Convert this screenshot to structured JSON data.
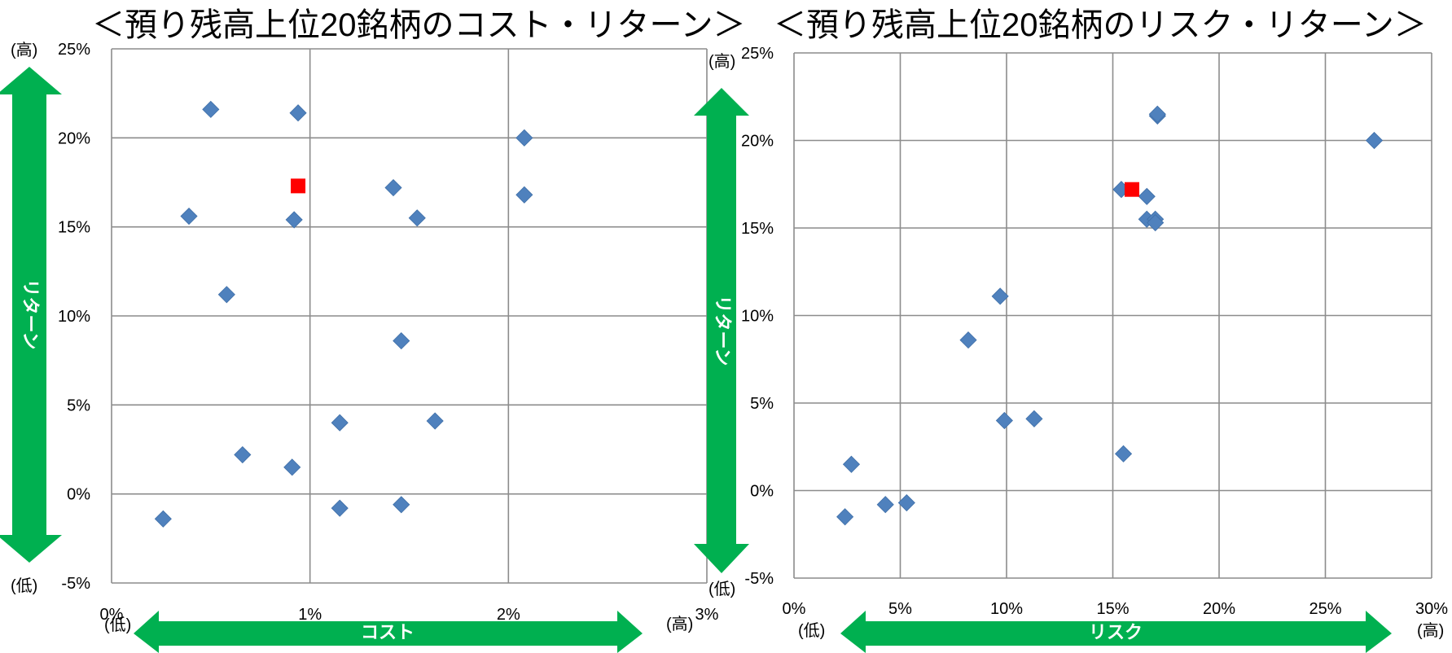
{
  "chart_data": [
    {
      "type": "scatter",
      "title": "＜預り残高上位20銘柄のコスト・リターン＞",
      "xlabel": "コスト",
      "ylabel": "リターン",
      "xlim": [
        0,
        3
      ],
      "ylim": [
        -5,
        25
      ],
      "x_ticks": [
        0,
        1,
        2,
        3
      ],
      "y_ticks": [
        -5,
        0,
        5,
        10,
        15,
        20,
        25
      ],
      "x_tick_labels": [
        "0%",
        "1%",
        "2%",
        "3%"
      ],
      "y_tick_labels": [
        "-5%",
        "0%",
        "5%",
        "10%",
        "15%",
        "20%",
        "25%"
      ],
      "high_label": "(高)",
      "low_label": "(低)",
      "grid": true,
      "series": [
        {
          "marker": "diamond",
          "color": "#4f81bd",
          "x": [
            0.5,
            0.94,
            0.39,
            0.92,
            0.58,
            1.42,
            1.54,
            2.08,
            2.08,
            1.46,
            1.15,
            1.63,
            0.66,
            0.91,
            0.26,
            1.15,
            1.46
          ],
          "y": [
            21.6,
            21.4,
            15.6,
            15.4,
            11.2,
            17.2,
            15.5,
            20.0,
            16.8,
            8.6,
            4.0,
            4.1,
            2.2,
            1.5,
            -1.4,
            -0.8,
            -0.6
          ]
        },
        {
          "marker": "square",
          "color": "#ff0000",
          "x": [
            0.94
          ],
          "y": [
            17.3
          ]
        }
      ]
    },
    {
      "type": "scatter",
      "title": "＜預り残高上位20銘柄のリスク・リターン＞",
      "xlabel": "リスク",
      "ylabel": "リターン",
      "xlim": [
        0,
        30
      ],
      "ylim": [
        -5,
        25
      ],
      "x_ticks": [
        0,
        5,
        10,
        15,
        20,
        25,
        30
      ],
      "y_ticks": [
        -5,
        0,
        5,
        10,
        15,
        20,
        25
      ],
      "x_tick_labels": [
        "0%",
        "5%",
        "10%",
        "15%",
        "20%",
        "25%",
        "30%"
      ],
      "y_tick_labels": [
        "-5%",
        "0%",
        "5%",
        "10%",
        "15%",
        "20%",
        "25%"
      ],
      "high_label": "(高)",
      "low_label": "(低)",
      "grid": true,
      "series": [
        {
          "marker": "diamond",
          "color": "#4f81bd",
          "x": [
            17.1,
            17.1,
            27.3,
            15.4,
            16.6,
            16.6,
            17.0,
            17.0,
            9.7,
            8.2,
            9.9,
            11.3,
            15.5,
            2.7,
            2.4,
            4.3,
            5.3
          ],
          "y": [
            21.4,
            21.5,
            20.0,
            17.2,
            16.8,
            15.5,
            15.5,
            15.3,
            11.1,
            8.6,
            4.0,
            4.1,
            2.1,
            1.5,
            -1.5,
            -0.8,
            -0.7
          ]
        },
        {
          "marker": "square",
          "color": "#ff0000",
          "x": [
            15.9
          ],
          "y": [
            17.2
          ]
        }
      ]
    }
  ]
}
